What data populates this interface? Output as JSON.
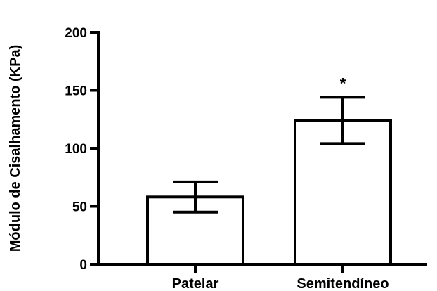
{
  "chart_data": {
    "type": "bar",
    "title": "",
    "xlabel": "",
    "ylabel": "Módulo de Cisalhamento (KPa)",
    "ylim": [
      0,
      200
    ],
    "yticks": [
      0,
      50,
      100,
      150,
      200
    ],
    "grid": false,
    "categories": [
      "Patelar",
      "Semitendíneo"
    ],
    "values": [
      58,
      124
    ],
    "error": [
      13,
      20
    ],
    "annotations": [
      "",
      "*"
    ]
  }
}
